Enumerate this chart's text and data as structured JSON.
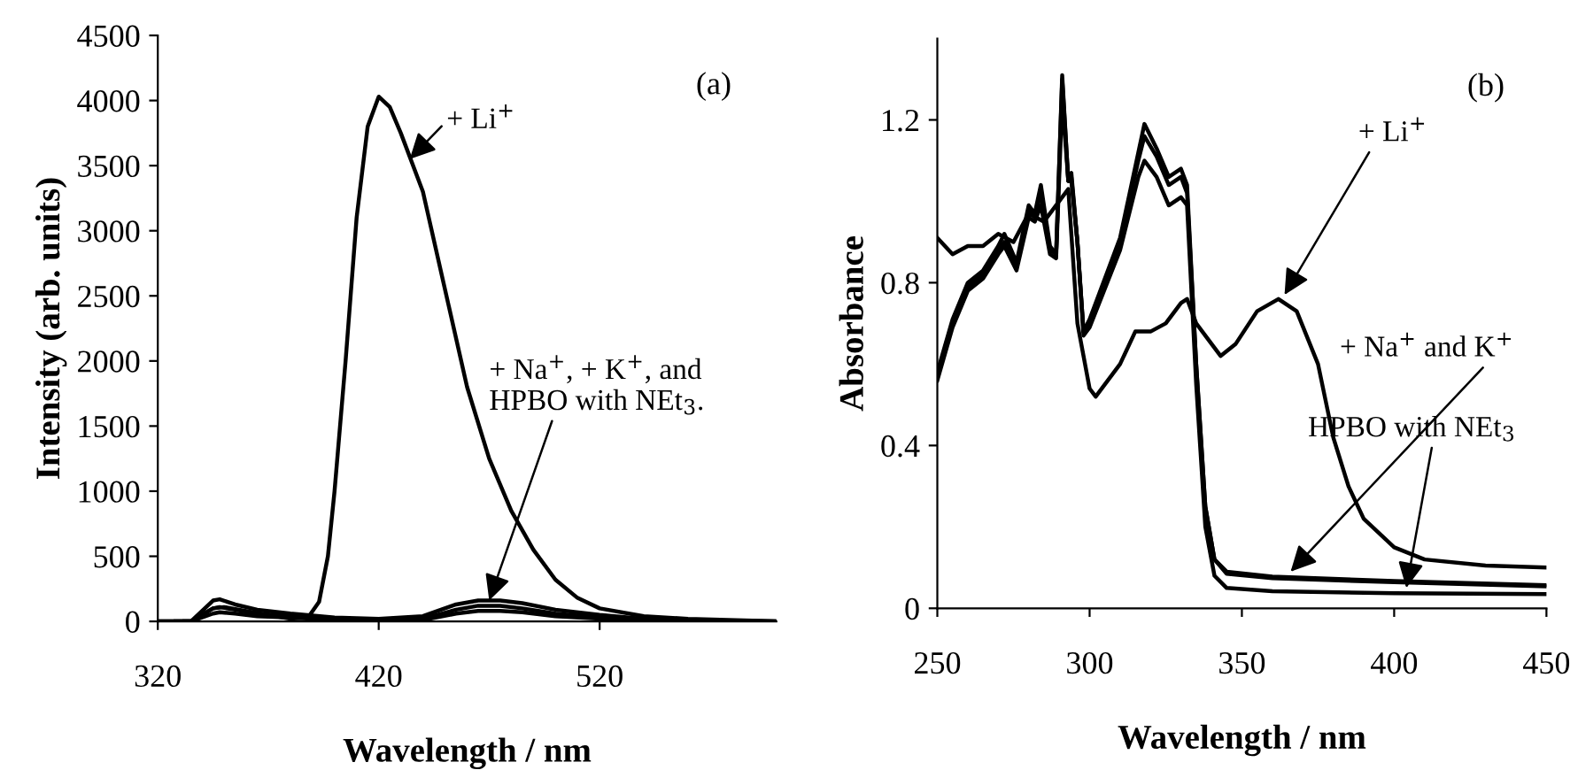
{
  "chart_data": [
    {
      "type": "line",
      "xlabel": "Wavelength / nm",
      "ylabel": "Intensity (arb. units)",
      "xlim": [
        320,
        600
      ],
      "ylim": [
        0,
        4500
      ],
      "xticks": [
        320,
        420,
        520
      ],
      "yticks": [
        0,
        500,
        1000,
        1500,
        2000,
        2500,
        3000,
        3500,
        4000,
        4500
      ],
      "series": [
        {
          "color": "#000000",
          "x": [
            320,
            335,
            340,
            345,
            350,
            360,
            370,
            380,
            388,
            393,
            397,
            400,
            405,
            410,
            415,
            420,
            425,
            430,
            440,
            450,
            460,
            470,
            480,
            490,
            500,
            510,
            520,
            540,
            560,
            600
          ],
          "values": [
            0,
            0,
            50,
            100,
            110,
            80,
            50,
            20,
            30,
            150,
            500,
            1000,
            2000,
            3100,
            3800,
            4030,
            3950,
            3750,
            3300,
            2550,
            1800,
            1250,
            850,
            550,
            320,
            180,
            100,
            40,
            20,
            0
          ]
        },
        {
          "color": "#000000",
          "x": [
            320,
            335,
            340,
            345,
            348,
            355,
            365,
            380,
            400,
            420,
            440,
            455,
            465,
            475,
            485,
            500,
            520,
            540,
            560,
            600
          ],
          "values": [
            0,
            0,
            80,
            160,
            170,
            130,
            90,
            60,
            30,
            20,
            40,
            130,
            160,
            160,
            140,
            90,
            50,
            20,
            10,
            0
          ]
        },
        {
          "color": "#000000",
          "x": [
            328,
            335,
            340,
            345,
            348,
            355,
            365,
            380,
            400,
            420,
            440,
            455,
            465,
            475,
            485,
            500,
            520,
            540,
            560,
            590
          ],
          "values": [
            0,
            0,
            50,
            100,
            110,
            90,
            60,
            40,
            20,
            10,
            20,
            90,
            120,
            120,
            100,
            60,
            30,
            10,
            0,
            0
          ]
        },
        {
          "color": "#000000",
          "x": [
            332,
            335,
            340,
            345,
            348,
            355,
            365,
            380,
            400,
            420,
            440,
            455,
            465,
            475,
            485,
            500,
            520,
            540,
            560,
            580
          ],
          "values": [
            0,
            0,
            30,
            60,
            70,
            60,
            40,
            30,
            10,
            0,
            10,
            60,
            80,
            80,
            70,
            40,
            20,
            10,
            0,
            0
          ]
        }
      ],
      "annotations": [
        "(a)",
        {
          "text": "+ Li$^{+}$",
          "x": 434,
          "y": 3550
        },
        {
          "text": "+ Na$^{+}$, + K$^{+}$, and\nHPBO with NEt$_{3}$.",
          "x": 470,
          "y": 160
        }
      ]
    },
    {
      "type": "line",
      "xlabel": "Wavelength / nm",
      "ylabel": "Absorbance",
      "xlim": [
        250,
        450
      ],
      "ylim": [
        0,
        1.4
      ],
      "xticks": [
        250,
        300,
        350,
        400,
        450
      ],
      "yticks": [
        0,
        0.4,
        0.8,
        1.2
      ],
      "series": [
        {
          "color": "#000000",
          "x": [
            250,
            255,
            260,
            265,
            270,
            275,
            280,
            285,
            290,
            293,
            296,
            300,
            302,
            310,
            315,
            320,
            325,
            330,
            332,
            335,
            340,
            343,
            348,
            355,
            362,
            368,
            375,
            380,
            385,
            390,
            400,
            410,
            430,
            450
          ],
          "values": [
            0.91,
            0.87,
            0.89,
            0.89,
            0.92,
            0.9,
            0.97,
            0.95,
            1.0,
            1.03,
            0.7,
            0.54,
            0.52,
            0.6,
            0.68,
            0.68,
            0.7,
            0.75,
            0.76,
            0.7,
            0.65,
            0.62,
            0.65,
            0.73,
            0.76,
            0.73,
            0.6,
            0.42,
            0.3,
            0.22,
            0.15,
            0.12,
            0.105,
            0.1
          ]
        },
        {
          "color": "#000000",
          "x": [
            250,
            255,
            260,
            265,
            270,
            272,
            276,
            280,
            282,
            284,
            287,
            289,
            291,
            293,
            294,
            296,
            298,
            300,
            310,
            316,
            318,
            322,
            326,
            330,
            332,
            335,
            338,
            341,
            345,
            360,
            400,
            450
          ],
          "values": [
            0.58,
            0.71,
            0.8,
            0.83,
            0.89,
            0.92,
            0.85,
            0.99,
            0.97,
            1.04,
            0.89,
            0.87,
            1.31,
            1.05,
            1.07,
            0.9,
            0.68,
            0.71,
            0.91,
            1.12,
            1.19,
            1.13,
            1.06,
            1.08,
            1.04,
            0.6,
            0.25,
            0.12,
            0.09,
            0.078,
            0.067,
            0.057
          ]
        },
        {
          "color": "#000000",
          "x": [
            250,
            255,
            260,
            265,
            270,
            272,
            276,
            280,
            282,
            284,
            287,
            289,
            291,
            293,
            294,
            296,
            298,
            300,
            310,
            316,
            318,
            322,
            326,
            330,
            332,
            335,
            338,
            341,
            345,
            360,
            400,
            450
          ],
          "values": [
            0.57,
            0.7,
            0.79,
            0.82,
            0.88,
            0.9,
            0.84,
            0.98,
            0.96,
            1.02,
            0.88,
            0.87,
            1.3,
            1.05,
            1.06,
            0.9,
            0.68,
            0.7,
            0.9,
            1.1,
            1.16,
            1.11,
            1.04,
            1.06,
            1.02,
            0.6,
            0.25,
            0.12,
            0.085,
            0.074,
            0.064,
            0.054
          ]
        },
        {
          "color": "#000000",
          "x": [
            250,
            255,
            260,
            265,
            270,
            272,
            276,
            280,
            282,
            284,
            287,
            289,
            291,
            293,
            294,
            296,
            298,
            300,
            310,
            316,
            318,
            322,
            326,
            330,
            332,
            335,
            338,
            341,
            345,
            360,
            400,
            450
          ],
          "values": [
            0.56,
            0.69,
            0.78,
            0.81,
            0.87,
            0.89,
            0.83,
            0.96,
            0.95,
            0.99,
            0.87,
            0.86,
            1.25,
            1.05,
            1.05,
            0.9,
            0.67,
            0.69,
            0.88,
            1.06,
            1.1,
            1.06,
            0.99,
            1.01,
            0.99,
            0.55,
            0.2,
            0.08,
            0.05,
            0.042,
            0.037,
            0.035
          ]
        }
      ],
      "annotations": [
        "(b)",
        {
          "text": "+ Li$^{+}$",
          "x": 364,
          "y": 0.77
        },
        {
          "text": "+ Na$^{+}$ and K$^{+}$",
          "x": 366,
          "y": 0.09
        },
        {
          "text": "HPBO with NEt$_{3}$",
          "x": 404,
          "y": 0.05
        }
      ]
    }
  ]
}
